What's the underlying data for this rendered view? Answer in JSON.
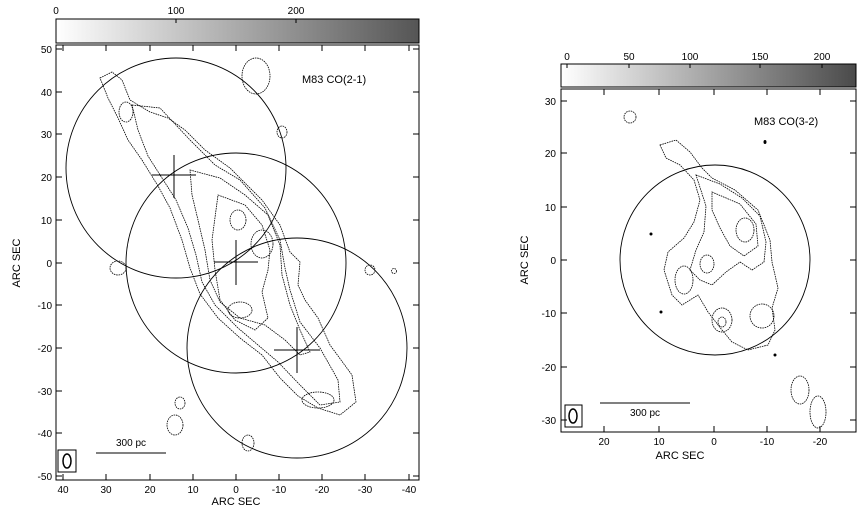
{
  "panels": [
    {
      "id": "left",
      "map_label": "M83 CO(2-1)",
      "colorbar_ticks": [
        "0",
        "100",
        "200"
      ],
      "x_label": "ARC SEC",
      "y_label": "ARC SEC",
      "x_ticks": [
        "40",
        "30",
        "20",
        "10",
        "0",
        "-10",
        "-20",
        "-30",
        "-40"
      ],
      "y_ticks": [
        "50",
        "40",
        "30",
        "20",
        "10",
        "0",
        "-10",
        "-20",
        "-30",
        "-40",
        "-50"
      ],
      "scalebar_label": "300 pc"
    },
    {
      "id": "right",
      "map_label": "M83 CO(3-2)",
      "colorbar_ticks": [
        "0",
        "50",
        "100",
        "150",
        "200"
      ],
      "x_label": "ARC SEC",
      "y_label": "ARC SEC",
      "x_ticks": [
        "20",
        "10",
        "0",
        "-10",
        "-20"
      ],
      "y_ticks": [
        "30",
        "20",
        "10",
        "0",
        "-10",
        "-20",
        "-30"
      ],
      "scalebar_label": "300 pc"
    }
  ]
}
